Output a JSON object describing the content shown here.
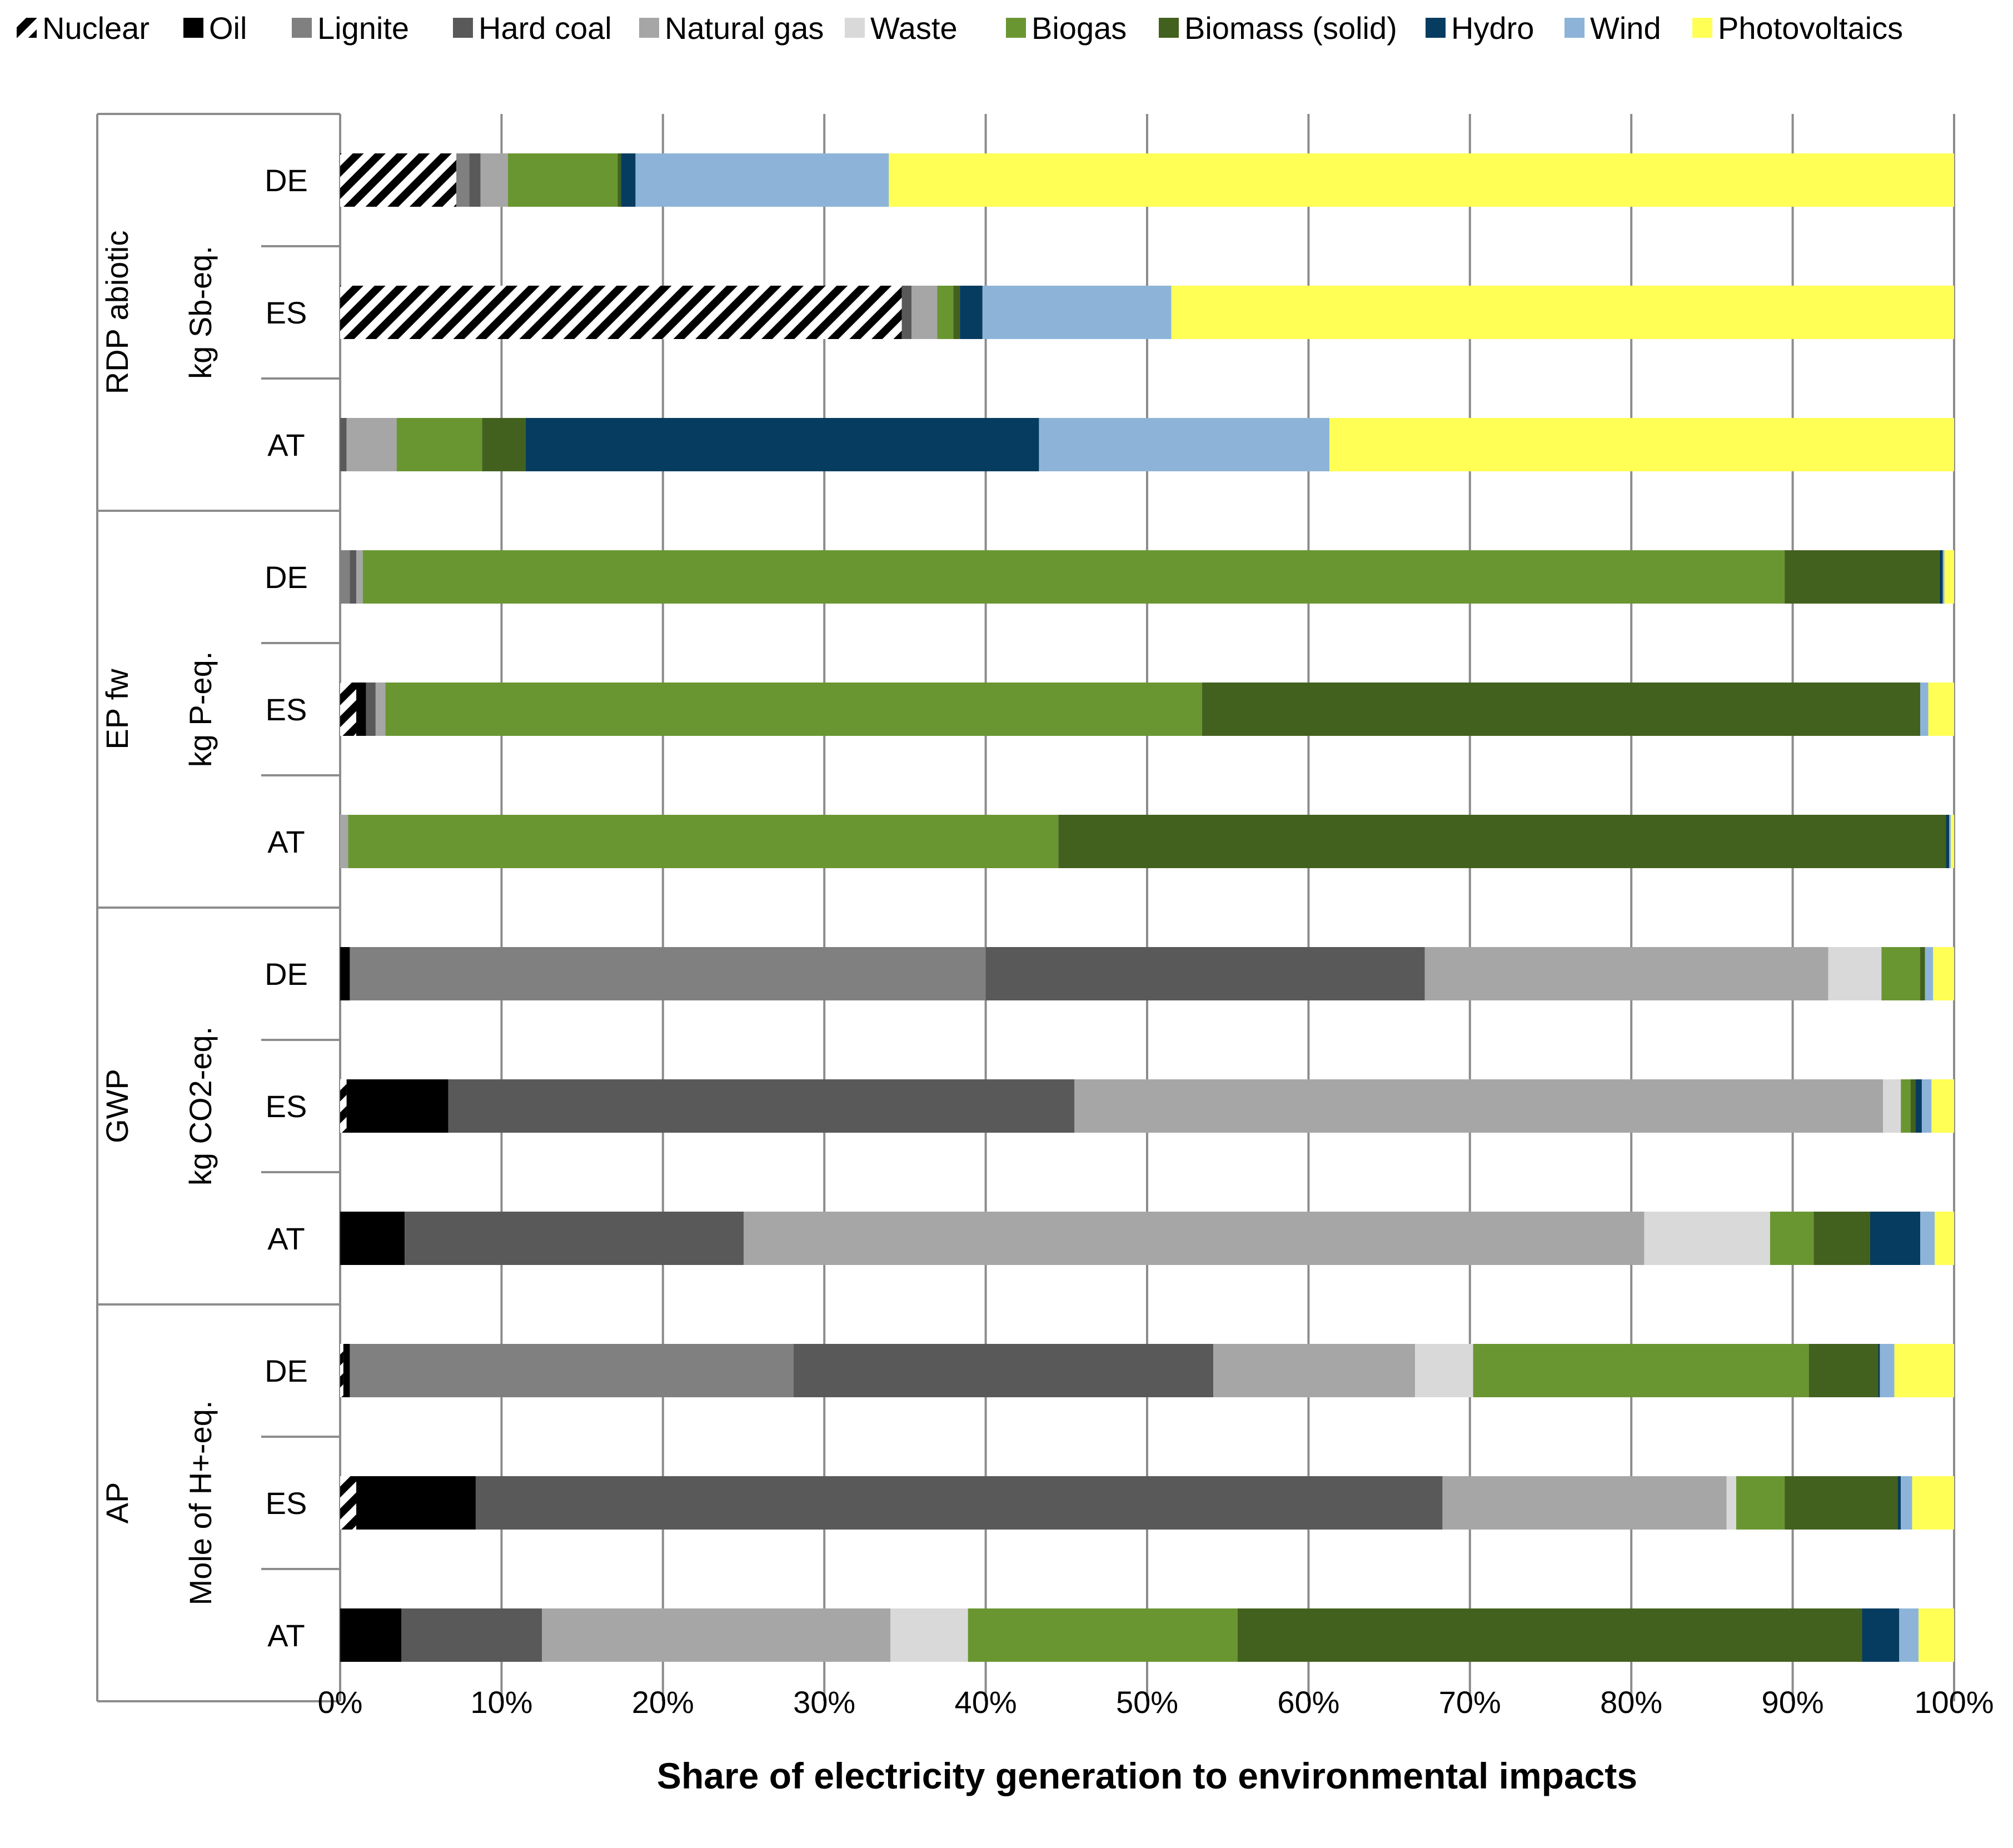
{
  "chart_data": {
    "type": "bar",
    "orientation": "horizontal",
    "stacked": true,
    "xlabel": "Share of electricity generation to environmental impacts",
    "xlim": [
      0,
      100
    ],
    "xticks": [
      0,
      10,
      20,
      30,
      40,
      50,
      60,
      70,
      80,
      90,
      100
    ],
    "xtick_labels": [
      "0%",
      "10%",
      "20%",
      "30%",
      "40%",
      "50%",
      "60%",
      "70%",
      "80%",
      "90%",
      "100%"
    ],
    "grid": "vertical",
    "legend_position": "top",
    "sources": [
      {
        "name": "Nuclear",
        "color": "#000000",
        "pattern": "diagonal-hatch"
      },
      {
        "name": "Oil",
        "color": "#000000"
      },
      {
        "name": "Lignite",
        "color": "#808080"
      },
      {
        "name": "Hard coal",
        "color": "#595959"
      },
      {
        "name": "Natural gas",
        "color": "#a6a6a6"
      },
      {
        "name": "Waste",
        "color": "#d9d9d9"
      },
      {
        "name": "Biogas",
        "color": "#6a9632"
      },
      {
        "name": "Biomass (solid)",
        "color": "#43611e"
      },
      {
        "name": "Hydro",
        "color": "#063c60"
      },
      {
        "name": "Wind",
        "color": "#8db4d8"
      },
      {
        "name": "Photovoltaics",
        "color": "#ffff55"
      }
    ],
    "groups": [
      {
        "name": "RDP abiotic",
        "unit": "kg Sb-eq.",
        "bars": [
          {
            "label": "DE",
            "values": [
              7.2,
              0,
              0.8,
              0.7,
              1.7,
              0,
              6.8,
              0.2,
              0.9,
              15.7,
              66.0
            ]
          },
          {
            "label": "ES",
            "values": [
              34.8,
              0,
              0,
              0.6,
              1.6,
              0,
              1.0,
              0.4,
              1.4,
              11.7,
              48.5
            ]
          },
          {
            "label": "AT",
            "values": [
              0,
              0,
              0,
              0.4,
              3.1,
              0,
              5.3,
              2.7,
              31.8,
              18.0,
              38.7
            ]
          }
        ]
      },
      {
        "name": "EP fw",
        "unit": "kg P-eq.",
        "bars": [
          {
            "label": "DE",
            "values": [
              0,
              0,
              0.6,
              0.4,
              0.4,
              0,
              88.1,
              9.6,
              0.2,
              0.1,
              0.6
            ]
          },
          {
            "label": "ES",
            "values": [
              1.0,
              0.6,
              0,
              0.6,
              0.6,
              0,
              50.6,
              44.5,
              0,
              0.5,
              1.6
            ]
          },
          {
            "label": "AT",
            "values": [
              0,
              0,
              0,
              0,
              0.5,
              0,
              44.0,
              55.0,
              0.2,
              0.1,
              0.2
            ]
          }
        ]
      },
      {
        "name": "GWP",
        "unit": "kg CO2-eq.",
        "bars": [
          {
            "label": "DE",
            "values": [
              0,
              0.6,
              39.4,
              27.2,
              25.0,
              3.3,
              2.4,
              0.3,
              0,
              0.5,
              1.3
            ]
          },
          {
            "label": "ES",
            "values": [
              0.4,
              6.3,
              0,
              38.8,
              50.1,
              1.1,
              0.6,
              0.3,
              0.4,
              0.6,
              1.4
            ]
          },
          {
            "label": "AT",
            "values": [
              0,
              4.0,
              0,
              21.0,
              55.8,
              7.8,
              2.7,
              3.5,
              3.1,
              0.9,
              1.2
            ]
          }
        ]
      },
      {
        "name": "AP",
        "unit": "Mole of H+-eq.",
        "bars": [
          {
            "label": "DE",
            "values": [
              0.2,
              0.4,
              27.5,
              26.0,
              12.5,
              3.6,
              20.8,
              4.3,
              0.1,
              0.9,
              3.7
            ]
          },
          {
            "label": "ES",
            "values": [
              1.0,
              7.4,
              0,
              59.9,
              17.6,
              0.6,
              3.0,
              7.0,
              0.2,
              0.7,
              2.6
            ]
          },
          {
            "label": "AT",
            "values": [
              0,
              3.8,
              0,
              8.7,
              21.6,
              4.8,
              16.7,
              38.7,
              2.3,
              1.2,
              2.2
            ]
          }
        ]
      }
    ]
  }
}
